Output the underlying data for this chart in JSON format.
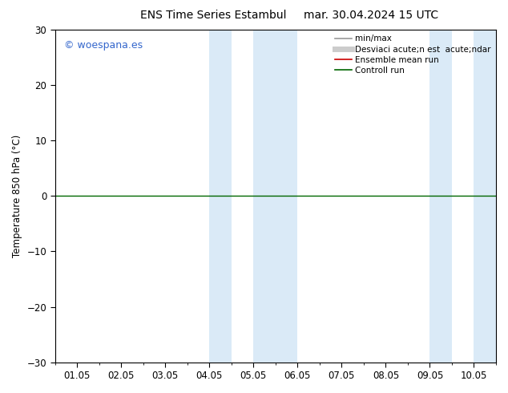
{
  "title_left": "ENS Time Series Estambul",
  "title_right": "mar. 30.04.2024 15 UTC",
  "ylabel": "Temperature 850 hPa (°C)",
  "ylim": [
    -30,
    30
  ],
  "yticks": [
    -30,
    -20,
    -10,
    0,
    10,
    20,
    30
  ],
  "xtick_labels": [
    "01.05",
    "02.05",
    "03.05",
    "04.05",
    "05.05",
    "06.05",
    "07.05",
    "08.05",
    "09.05",
    "10.05"
  ],
  "watermark": "© woespana.es",
  "legend_entries": [
    {
      "label": "min/max",
      "color": "#999999",
      "lw": 1.2,
      "style": "line"
    },
    {
      "label": "Desviaci acute;n est  acute;ndar",
      "color": "#cccccc",
      "lw": 5,
      "style": "line"
    },
    {
      "label": "Ensemble mean run",
      "color": "#cc0000",
      "lw": 1.2,
      "style": "line"
    },
    {
      "label": "Controll run",
      "color": "#006600",
      "lw": 1.2,
      "style": "line"
    }
  ],
  "shaded_bands": [
    {
      "xstart": 3.0,
      "xend": 3.5
    },
    {
      "xstart": 4.0,
      "xend": 5.0
    },
    {
      "xstart": 8.0,
      "xend": 8.5
    },
    {
      "xstart": 9.0,
      "xend": 9.5
    }
  ],
  "band_color": "#daeaf7",
  "hline_y": 0,
  "hline_color": "#006600",
  "hline_lw": 1.0,
  "background_color": "white",
  "title_fontsize": 10,
  "axis_fontsize": 8.5,
  "watermark_color": "#3366cc",
  "watermark_fontsize": 9,
  "legend_fontsize": 7.5
}
